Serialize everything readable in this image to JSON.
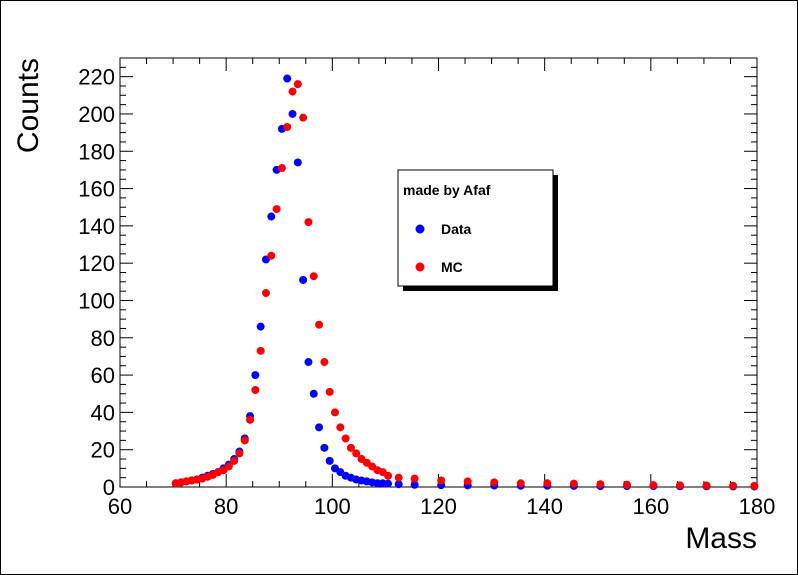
{
  "chart_data": {
    "type": "scatter",
    "xlabel": "Mass",
    "ylabel": "Counts",
    "xlim": [
      60,
      180
    ],
    "ylim": [
      0,
      230
    ],
    "x_ticks": [
      "60",
      "80",
      "100",
      "120",
      "140",
      "160",
      "180"
    ],
    "y_ticks": [
      "0",
      "20",
      "40",
      "60",
      "80",
      "100",
      "120",
      "140",
      "160",
      "180",
      "200",
      "220"
    ],
    "legend": {
      "title": "made by Afaf",
      "placement": "center-right"
    },
    "series": [
      {
        "name": "Data",
        "color": "#0000ff",
        "x": [
          70.5,
          71.5,
          72.5,
          73.5,
          74.5,
          75.5,
          76.5,
          77.5,
          78.5,
          79.5,
          80.5,
          81.5,
          82.5,
          83.5,
          84.5,
          85.5,
          86.5,
          87.5,
          88.5,
          89.5,
          90.5,
          91.5,
          92.5,
          93.5,
          94.5,
          95.5,
          96.5,
          97.5,
          98.5,
          99.5,
          100.5,
          101.5,
          102.5,
          103.5,
          104.5,
          105.5,
          106.5,
          107.5,
          108.5,
          109.5,
          110.5,
          112.5,
          115.5,
          120.5,
          125.5,
          130.5,
          135.5,
          140.5,
          145.5,
          150.5,
          155.5,
          160.5,
          165.5,
          170.5,
          175.5,
          179.5
        ],
        "y": [
          2,
          2.5,
          3,
          3.5,
          4,
          5,
          6,
          7,
          8,
          10,
          12,
          15,
          19,
          26,
          38,
          60,
          86,
          122,
          145,
          170,
          192,
          219,
          200,
          174,
          111,
          67,
          50,
          32,
          21,
          14,
          10,
          8,
          6,
          5,
          4,
          3.5,
          3,
          2.5,
          2,
          2,
          1.8,
          1.5,
          1.2,
          1,
          0.9,
          0.8,
          0.7,
          0.7,
          0.6,
          0.5,
          0.5,
          0.5,
          0.4,
          0.4,
          0.3,
          0.3
        ]
      },
      {
        "name": "MC",
        "color": "#ff0000",
        "x": [
          70.5,
          71.5,
          72.5,
          73.5,
          74.5,
          75.5,
          76.5,
          77.5,
          78.5,
          79.5,
          80.5,
          81.5,
          82.5,
          83.5,
          84.5,
          85.5,
          86.5,
          87.5,
          88.5,
          89.5,
          90.5,
          91.5,
          92.5,
          93.5,
          94.5,
          95.5,
          96.5,
          97.5,
          98.5,
          99.5,
          100.5,
          101.5,
          102.5,
          103.5,
          104.5,
          105.5,
          106.5,
          107.5,
          108.5,
          109.5,
          110.5,
          112.5,
          115.5,
          120.5,
          125.5,
          130.5,
          135.5,
          140.5,
          145.5,
          150.5,
          155.5,
          160.5,
          165.5,
          170.5,
          175.5,
          179.5
        ],
        "y": [
          2,
          2.5,
          3,
          3.5,
          4,
          4.5,
          5.5,
          6.5,
          8,
          9,
          11,
          14,
          18,
          25,
          36,
          52,
          73,
          104,
          124,
          149,
          171,
          193,
          212,
          216,
          198,
          142,
          113,
          87,
          67,
          51,
          40,
          32,
          26,
          21,
          18,
          15,
          13,
          11,
          9,
          8,
          6,
          5,
          4.5,
          3.5,
          3,
          2.5,
          2,
          2,
          1.8,
          1.5,
          1.2,
          1,
          0.9,
          0.8,
          0.7,
          0.6
        ]
      }
    ]
  }
}
